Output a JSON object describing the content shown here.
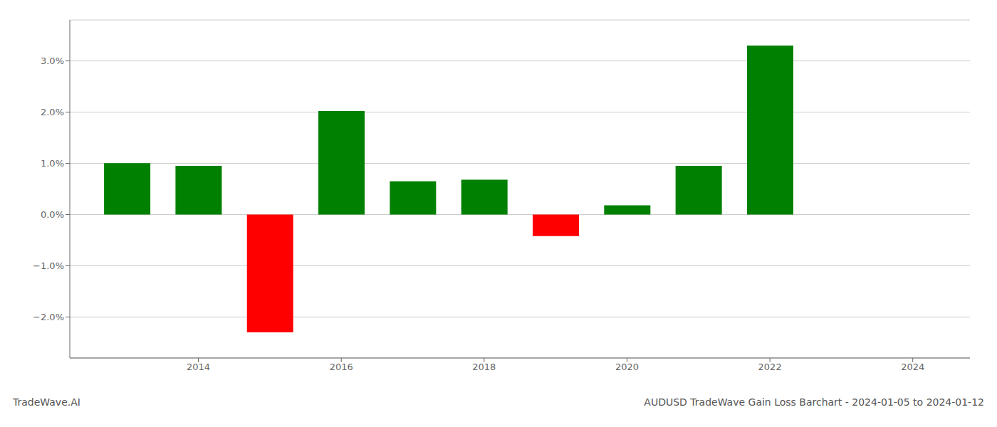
{
  "chart_data": {
    "type": "bar",
    "x": [
      2013,
      2014,
      2015,
      2016,
      2017,
      2018,
      2019,
      2020,
      2021,
      2022,
      2023
    ],
    "values": [
      0.01005,
      0.0095,
      -0.023,
      0.0202,
      0.0065,
      0.0068,
      -0.0042,
      0.0018,
      0.0095,
      0.033,
      0.0
    ],
    "colors": [
      "#008000",
      "#008000",
      "#ff0000",
      "#008000",
      "#008000",
      "#008000",
      "#ff0000",
      "#008000",
      "#008000",
      "#008000",
      "#008000"
    ],
    "xlim": [
      2012.2,
      2024.8
    ],
    "xticks": [
      2014,
      2016,
      2018,
      2020,
      2022,
      2024
    ],
    "ylim": [
      -0.028,
      0.038
    ],
    "yticks": [
      {
        "value": -0.02,
        "label": "−2.0%"
      },
      {
        "value": -0.01,
        "label": "−1.0%"
      },
      {
        "value": 0.0,
        "label": "0.0%"
      },
      {
        "value": 0.01,
        "label": "1.0%"
      },
      {
        "value": 0.02,
        "label": "2.0%"
      },
      {
        "value": 0.03,
        "label": "3.0%"
      }
    ],
    "grid": true,
    "annotations": [
      "TradeWave.AI",
      "AUDUSD TradeWave Gain Loss Barchart - 2024-01-05 to 2024-01-12"
    ]
  }
}
